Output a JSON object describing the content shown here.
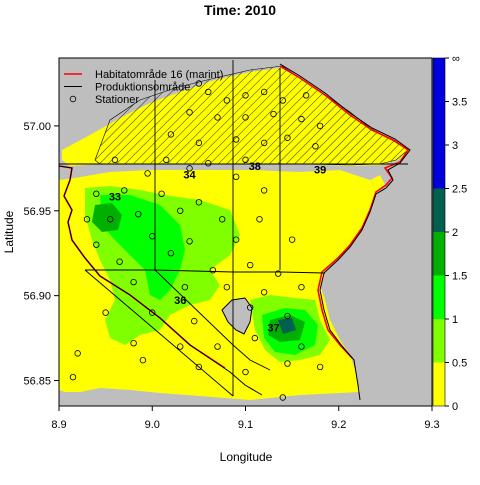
{
  "chart_data": {
    "type": "heatmap",
    "title": "Time: 2010",
    "xlabel": "Longitude",
    "ylabel": "Latitude",
    "xlim": [
      8.9,
      9.3
    ],
    "ylim": [
      56.835,
      57.04
    ],
    "x_ticks": [
      {
        "value": 8.9,
        "label": "8.9"
      },
      {
        "value": 9.0,
        "label": "9.0"
      },
      {
        "value": 9.1,
        "label": "9.1"
      },
      {
        "value": 9.2,
        "label": "9.2"
      },
      {
        "value": 9.3,
        "label": "9.3"
      }
    ],
    "y_ticks": [
      {
        "value": 56.85,
        "label": "56.85"
      },
      {
        "value": 56.9,
        "label": "56.90"
      },
      {
        "value": 56.95,
        "label": "56.95"
      },
      {
        "value": 57.0,
        "label": "57.00"
      }
    ],
    "legend": {
      "position": "top-left",
      "entries": [
        {
          "label": "Habitatområde 16 (marint)",
          "symbol": "line",
          "color": "#ff0000"
        },
        {
          "label": "Produktionsområde",
          "symbol": "line",
          "color": "#000000"
        },
        {
          "label": "Stationer",
          "symbol": "circle",
          "color": "#000000"
        }
      ]
    },
    "colorbar": {
      "position": "right",
      "ticks": [
        "0",
        "0.5",
        "1",
        "1.5",
        "2",
        "2.5",
        "3",
        "3.5",
        "∞"
      ],
      "bins": [
        {
          "from": 0.0,
          "to": 0.5,
          "color": "#ffff00"
        },
        {
          "from": 0.5,
          "to": 1.0,
          "color": "#80ff00"
        },
        {
          "from": 1.0,
          "to": 1.5,
          "color": "#00ff00"
        },
        {
          "from": 1.5,
          "to": 2.0,
          "color": "#00b000"
        },
        {
          "from": 2.0,
          "to": 2.5,
          "color": "#006050"
        },
        {
          "from": 2.5,
          "to": 4.0,
          "color": "#0000dd"
        }
      ]
    },
    "land_color": "#bebebe",
    "area_labels": [
      {
        "label": "33",
        "lon": 8.96,
        "lat": 56.956
      },
      {
        "label": "34",
        "lon": 9.04,
        "lat": 56.969
      },
      {
        "label": "38",
        "lon": 9.11,
        "lat": 56.974
      },
      {
        "label": "39",
        "lon": 9.18,
        "lat": 56.972
      },
      {
        "label": "36",
        "lon": 9.03,
        "lat": 56.895
      },
      {
        "label": "37",
        "lon": 9.13,
        "lat": 56.879
      }
    ],
    "stations": [
      [
        9.05,
        57.025
      ],
      [
        9.06,
        57.02
      ],
      [
        9.08,
        57.015
      ],
      [
        9.1,
        57.018
      ],
      [
        9.12,
        57.02
      ],
      [
        9.14,
        57.015
      ],
      [
        9.165,
        57.018
      ],
      [
        9.04,
        57.008
      ],
      [
        9.07,
        57.005
      ],
      [
        9.1,
        57.005
      ],
      [
        9.13,
        57.007
      ],
      [
        9.16,
        57.004
      ],
      [
        9.18,
        57.0
      ],
      [
        9.02,
        56.995
      ],
      [
        9.05,
        56.99
      ],
      [
        9.09,
        56.992
      ],
      [
        9.12,
        56.99
      ],
      [
        9.145,
        56.993
      ],
      [
        9.175,
        56.988
      ],
      [
        9.015,
        56.98
      ],
      [
        9.06,
        56.978
      ],
      [
        9.1,
        56.98
      ],
      [
        8.96,
        56.98
      ],
      [
        8.995,
        56.972
      ],
      [
        9.04,
        56.975
      ],
      [
        9.09,
        56.97
      ],
      [
        8.94,
        56.96
      ],
      [
        8.97,
        56.962
      ],
      [
        9.01,
        56.96
      ],
      [
        9.05,
        56.955
      ],
      [
        9.12,
        56.962
      ],
      [
        8.93,
        56.945
      ],
      [
        8.955,
        56.945
      ],
      [
        8.985,
        56.948
      ],
      [
        9.03,
        56.95
      ],
      [
        9.075,
        56.945
      ],
      [
        9.115,
        56.945
      ],
      [
        8.94,
        56.93
      ],
      [
        9.0,
        56.935
      ],
      [
        9.04,
        56.932
      ],
      [
        9.09,
        56.933
      ],
      [
        9.15,
        56.933
      ],
      [
        8.965,
        56.92
      ],
      [
        9.02,
        56.925
      ],
      [
        9.065,
        56.915
      ],
      [
        9.105,
        56.918
      ],
      [
        9.135,
        56.913
      ],
      [
        8.98,
        56.908
      ],
      [
        9.035,
        56.905
      ],
      [
        9.08,
        56.905
      ],
      [
        9.12,
        56.902
      ],
      [
        9.16,
        56.905
      ],
      [
        8.95,
        56.89
      ],
      [
        9.0,
        56.89
      ],
      [
        9.045,
        56.885
      ],
      [
        9.105,
        56.893
      ],
      [
        9.145,
        56.888
      ],
      [
        8.98,
        56.872
      ],
      [
        9.03,
        56.87
      ],
      [
        9.07,
        56.87
      ],
      [
        9.11,
        56.875
      ],
      [
        9.16,
        56.87
      ],
      [
        8.92,
        56.866
      ],
      [
        8.99,
        56.862
      ],
      [
        9.05,
        56.858
      ],
      [
        9.1,
        56.855
      ],
      [
        9.145,
        56.86
      ],
      [
        9.18,
        56.858
      ],
      [
        8.915,
        56.852
      ],
      [
        9.14,
        56.84
      ]
    ]
  }
}
